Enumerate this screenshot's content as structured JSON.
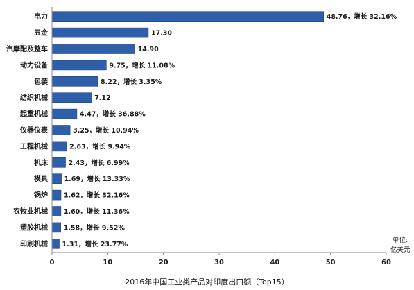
{
  "caption": "2016年中国工业类产品对印度出口额（Top15）",
  "unit_line1": "单位:",
  "unit_line2": "亿美元",
  "colors": {
    "bar": "#2e5fa8",
    "bar_edge": "#1f4685",
    "axis": "#888888"
  },
  "chart_data": {
    "type": "bar",
    "orientation": "horizontal",
    "title": "2016年中国工业类产品对印度出口额（Top15）",
    "xlabel": "",
    "ylabel": "",
    "xlim": [
      0,
      60
    ],
    "xticks": [
      0,
      10,
      20,
      30,
      40,
      50,
      60
    ],
    "grid": false,
    "categories": [
      "电力",
      "五金",
      "汽摩配及整车",
      "动力设备",
      "包装",
      "纺织机械",
      "起重机械",
      "仪器仪表",
      "工程机械",
      "机床",
      "模具",
      "锅炉",
      "农牧业机械",
      "塑胶机械",
      "印刷机械"
    ],
    "values": [
      48.76,
      17.3,
      14.9,
      9.75,
      8.22,
      7.12,
      4.47,
      3.25,
      2.63,
      2.43,
      1.69,
      1.62,
      1.6,
      1.58,
      1.31
    ],
    "data_labels": [
      "48.76，增长 32.16%",
      "17.30",
      "14.90",
      "9.75，增长 11.08%",
      "8.22，增长 3.35%",
      "7.12",
      "4.47，增长 36.88%",
      "3.25，增长 10.94%",
      "2.63，增长 9.94%",
      "2.43，增长 6.99%",
      "1.69，增长 13.33%",
      "1.62，增长 32.16%",
      "1.60，增长 11.36%",
      "1.58，增长 9.52%",
      "1.31，增长 23.77%"
    ]
  }
}
